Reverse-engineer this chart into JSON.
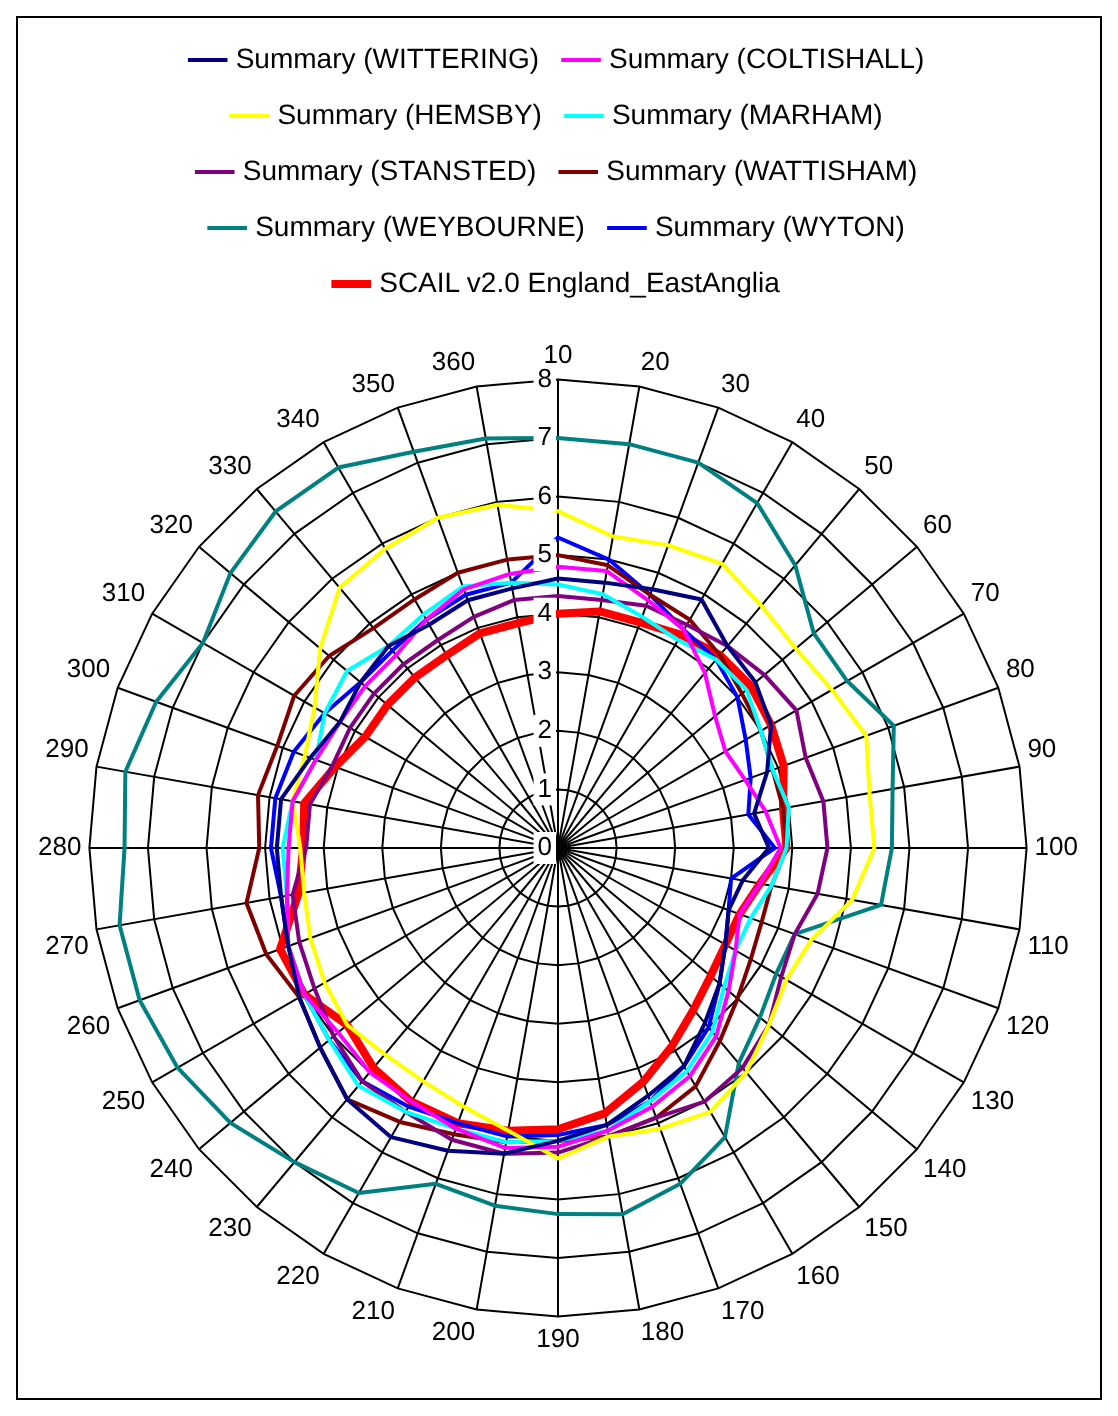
{
  "chart_data": {
    "type": "radar",
    "categories": [
      "10",
      "20",
      "30",
      "40",
      "50",
      "60",
      "70",
      "80",
      "90",
      "100",
      "110",
      "120",
      "130",
      "140",
      "150",
      "160",
      "170",
      "180",
      "190",
      "200",
      "210",
      "220",
      "230",
      "240",
      "250",
      "260",
      "270",
      "280",
      "290",
      "300",
      "310",
      "320",
      "330",
      "340",
      "350",
      "360"
    ],
    "ylim": [
      0,
      8
    ],
    "yticks": [
      0,
      1,
      2,
      3,
      4,
      5,
      6,
      7,
      8
    ],
    "grid": true,
    "legend": "top",
    "marker": "none",
    "line_style": "solid",
    "series": [
      {
        "name": "Summary (WITTERING)",
        "color": "#000080",
        "values": [
          4.6,
          4.6,
          4.7,
          4.9,
          4.5,
          4.4,
          4.2,
          3.8,
          3.4,
          3.6,
          3.2,
          3.1,
          3.3,
          3.6,
          3.9,
          4.3,
          4.5,
          4.8,
          5.0,
          5.3,
          5.5,
          5.7,
          5.6,
          5.3,
          5.1,
          4.9,
          4.8,
          4.8,
          4.8,
          4.5,
          4.3,
          4.4,
          4.5,
          4.4,
          4.5,
          4.5
        ]
      },
      {
        "name": "Summary (COLTISHALL)",
        "color": "#ff00ff",
        "values": [
          4.8,
          4.8,
          4.5,
          4.3,
          3.9,
          3.5,
          3.3,
          3.4,
          3.6,
          3.8,
          3.5,
          3.3,
          3.5,
          3.8,
          4.2,
          4.5,
          4.7,
          4.9,
          5.1,
          5.2,
          5.1,
          5.0,
          5.0,
          4.9,
          5.0,
          4.9,
          4.7,
          4.6,
          4.6,
          4.4,
          4.3,
          4.3,
          4.3,
          4.5,
          4.7,
          4.75
        ]
      },
      {
        "name": "Summary (HEMSBY)",
        "color": "#ffff00",
        "values": [
          5.75,
          5.4,
          5.5,
          5.6,
          5.4,
          5.3,
          5.4,
          5.6,
          5.4,
          5.4,
          5.1,
          4.6,
          4.5,
          4.7,
          5.0,
          5.2,
          5.1,
          5.0,
          5.3,
          4.9,
          4.7,
          4.6,
          4.6,
          4.7,
          4.6,
          4.5,
          4.4,
          4.4,
          4.6,
          4.6,
          4.8,
          5.3,
          5.8,
          5.9,
          6.0,
          5.95
        ]
      },
      {
        "name": "Summary (MARHAM)",
        "color": "#00ffff",
        "values": [
          4.5,
          4.4,
          4.2,
          4.1,
          4.2,
          4.2,
          4.0,
          3.9,
          4.0,
          3.9,
          3.7,
          3.5,
          3.5,
          3.7,
          4.1,
          4.4,
          4.6,
          4.9,
          5.0,
          5.1,
          5.1,
          5.2,
          5.3,
          5.1,
          5.0,
          4.9,
          4.7,
          4.7,
          4.6,
          4.4,
          4.6,
          4.7,
          4.5,
          4.6,
          4.75,
          4.6
        ]
      },
      {
        "name": "Summary (STANSTED)",
        "color": "#800080",
        "values": [
          4.3,
          4.3,
          4.4,
          4.4,
          4.5,
          4.6,
          4.7,
          4.5,
          4.6,
          4.6,
          4.5,
          4.3,
          4.4,
          4.7,
          4.9,
          5.0,
          4.9,
          5.0,
          5.2,
          5.3,
          5.3,
          5.2,
          5.2,
          5.0,
          4.8,
          4.7,
          4.6,
          4.3,
          4.3,
          4.1,
          4.1,
          4.1,
          4.1,
          4.1,
          4.2,
          4.3
        ]
      },
      {
        "name": "Summary (WATTISHAM)",
        "color": "#800000",
        "values": [
          5.0,
          4.9,
          4.6,
          4.5,
          4.3,
          4.1,
          4.0,
          3.9,
          3.9,
          3.9,
          3.7,
          3.7,
          3.8,
          4.0,
          4.3,
          4.7,
          4.9,
          5.0,
          5.0,
          5.1,
          5.2,
          5.4,
          5.6,
          5.3,
          5.1,
          5.3,
          5.4,
          5.1,
          5.2,
          5.1,
          5.2,
          5.1,
          4.9,
          4.9,
          5.0,
          5.0
        ]
      },
      {
        "name": "Summary (WEYBOURNE)",
        "color": "#008080",
        "values": [
          7.0,
          7.0,
          7.0,
          6.8,
          6.3,
          5.7,
          5.7,
          6.1,
          5.8,
          5.7,
          5.6,
          4.3,
          4.3,
          4.5,
          4.8,
          5.7,
          6.1,
          6.35,
          6.25,
          6.2,
          6.1,
          6.8,
          7.0,
          7.3,
          7.5,
          7.6,
          7.6,
          7.4,
          7.5,
          7.3,
          7.0,
          7.3,
          7.5,
          7.5,
          7.2,
          7.1
        ]
      },
      {
        "name": "Summary (WYTON)",
        "color": "#0000ff",
        "values": [
          5.3,
          5.0,
          4.6,
          4.3,
          4.2,
          4.0,
          3.7,
          3.5,
          3.3,
          3.7,
          3.0,
          3.1,
          3.3,
          3.6,
          4.0,
          4.3,
          4.6,
          4.8,
          4.9,
          5.0,
          5.0,
          5.1,
          5.2,
          5.1,
          5.0,
          4.9,
          4.8,
          4.9,
          4.9,
          4.8,
          4.6,
          4.4,
          4.4,
          4.5,
          4.6,
          4.6
        ]
      },
      {
        "name": "SCAIL v2.0 England_EastAnglia",
        "color": "#ff0000",
        "values": [
          4.0,
          4.1,
          4.1,
          4.2,
          4.3,
          4.3,
          4.2,
          4.1,
          3.9,
          3.9,
          3.5,
          3.3,
          3.3,
          3.4,
          3.6,
          3.9,
          4.25,
          4.6,
          4.8,
          4.9,
          5.0,
          5.0,
          4.9,
          4.7,
          5.0,
          5.05,
          4.5,
          4.35,
          4.4,
          4.05,
          3.8,
          3.8,
          3.8,
          3.8,
          3.9,
          3.9
        ]
      }
    ]
  }
}
